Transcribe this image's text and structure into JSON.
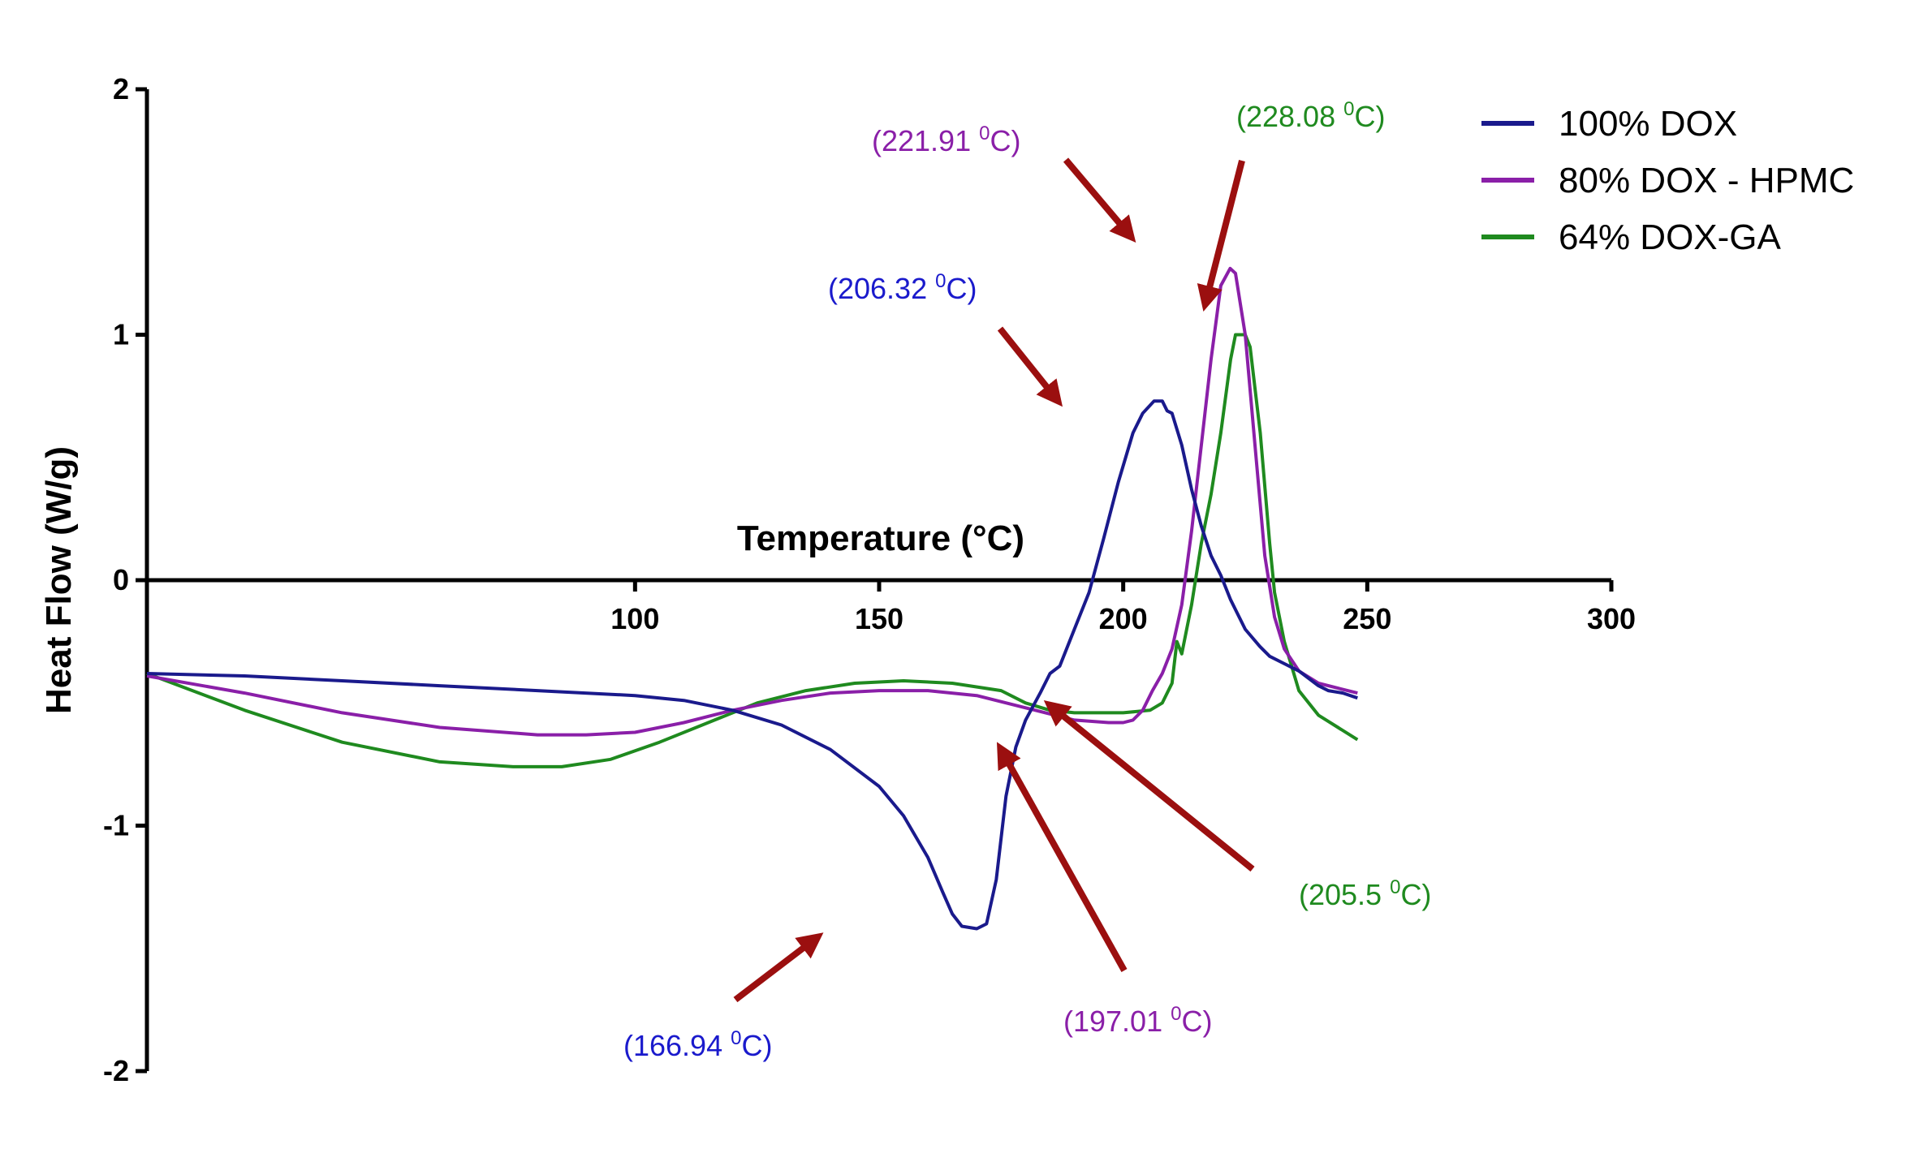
{
  "chart_data": {
    "type": "line",
    "xlabel": "Temperature (°C)",
    "ylabel": "Heat Flow (W/g)",
    "xlim": [
      0,
      300
    ],
    "ylim": [
      -2,
      2
    ],
    "x_ticks": [
      100,
      150,
      200,
      250,
      300
    ],
    "y_ticks": [
      2,
      1,
      0,
      -1,
      -2
    ],
    "grid": false,
    "legend_position": "top-right",
    "series": [
      {
        "name": "100% DOX",
        "color": "#1a1a8c",
        "points": [
          [
            0,
            -0.38
          ],
          [
            20,
            -0.39
          ],
          [
            40,
            -0.41
          ],
          [
            60,
            -0.43
          ],
          [
            80,
            -0.45
          ],
          [
            100,
            -0.47
          ],
          [
            110,
            -0.49
          ],
          [
            120,
            -0.53
          ],
          [
            130,
            -0.59
          ],
          [
            140,
            -0.69
          ],
          [
            150,
            -0.84
          ],
          [
            155,
            -0.96
          ],
          [
            160,
            -1.13
          ],
          [
            163,
            -1.27
          ],
          [
            165,
            -1.36
          ],
          [
            166.94,
            -1.41
          ],
          [
            170,
            -1.42
          ],
          [
            172,
            -1.4
          ],
          [
            174,
            -1.22
          ],
          [
            176,
            -0.88
          ],
          [
            178,
            -0.68
          ],
          [
            180,
            -0.57
          ],
          [
            183,
            -0.46
          ],
          [
            185,
            -0.38
          ],
          [
            187,
            -0.35
          ],
          [
            190,
            -0.2
          ],
          [
            193,
            -0.05
          ],
          [
            196,
            0.17
          ],
          [
            199,
            0.4
          ],
          [
            202,
            0.6
          ],
          [
            204,
            0.68
          ],
          [
            206.32,
            0.73
          ],
          [
            208,
            0.73
          ],
          [
            209,
            0.69
          ],
          [
            210,
            0.68
          ],
          [
            212,
            0.55
          ],
          [
            214,
            0.37
          ],
          [
            216,
            0.22
          ],
          [
            218,
            0.1
          ],
          [
            220,
            0.02
          ],
          [
            222,
            -0.08
          ],
          [
            225,
            -0.2
          ],
          [
            228,
            -0.27
          ],
          [
            230,
            -0.31
          ],
          [
            233,
            -0.34
          ],
          [
            236,
            -0.37
          ],
          [
            240,
            -0.43
          ],
          [
            242,
            -0.45
          ],
          [
            245,
            -0.46
          ],
          [
            248,
            -0.48
          ]
        ]
      },
      {
        "name": "80% DOX - HPMC",
        "color": "#8a1fa8",
        "points": [
          [
            0,
            -0.39
          ],
          [
            20,
            -0.46
          ],
          [
            40,
            -0.54
          ],
          [
            60,
            -0.6
          ],
          [
            80,
            -0.63
          ],
          [
            90,
            -0.63
          ],
          [
            100,
            -0.62
          ],
          [
            110,
            -0.58
          ],
          [
            120,
            -0.53
          ],
          [
            130,
            -0.49
          ],
          [
            140,
            -0.46
          ],
          [
            150,
            -0.45
          ],
          [
            160,
            -0.45
          ],
          [
            170,
            -0.47
          ],
          [
            180,
            -0.52
          ],
          [
            190,
            -0.57
          ],
          [
            197.01,
            -0.58
          ],
          [
            200,
            -0.58
          ],
          [
            202,
            -0.57
          ],
          [
            204,
            -0.53
          ],
          [
            206,
            -0.45
          ],
          [
            208,
            -0.38
          ],
          [
            210,
            -0.28
          ],
          [
            212,
            -0.1
          ],
          [
            214,
            0.2
          ],
          [
            216,
            0.55
          ],
          [
            218,
            0.9
          ],
          [
            220,
            1.2
          ],
          [
            221.91,
            1.27
          ],
          [
            223,
            1.25
          ],
          [
            225,
            1.0
          ],
          [
            227,
            0.55
          ],
          [
            229,
            0.1
          ],
          [
            231,
            -0.15
          ],
          [
            233,
            -0.28
          ],
          [
            236,
            -0.37
          ],
          [
            240,
            -0.42
          ],
          [
            244,
            -0.44
          ],
          [
            248,
            -0.46
          ]
        ]
      },
      {
        "name": "64% DOX-GA",
        "color": "#1f8a1f",
        "points": [
          [
            0,
            -0.38
          ],
          [
            20,
            -0.53
          ],
          [
            40,
            -0.66
          ],
          [
            60,
            -0.74
          ],
          [
            75,
            -0.76
          ],
          [
            85,
            -0.76
          ],
          [
            95,
            -0.73
          ],
          [
            105,
            -0.66
          ],
          [
            115,
            -0.58
          ],
          [
            125,
            -0.5
          ],
          [
            135,
            -0.45
          ],
          [
            145,
            -0.42
          ],
          [
            155,
            -0.41
          ],
          [
            165,
            -0.42
          ],
          [
            175,
            -0.45
          ],
          [
            180,
            -0.5
          ],
          [
            185,
            -0.53
          ],
          [
            190,
            -0.54
          ],
          [
            195,
            -0.54
          ],
          [
            200,
            -0.54
          ],
          [
            205.5,
            -0.53
          ],
          [
            208,
            -0.5
          ],
          [
            210,
            -0.42
          ],
          [
            211,
            -0.25
          ],
          [
            212,
            -0.3
          ],
          [
            214,
            -0.1
          ],
          [
            216,
            0.15
          ],
          [
            218,
            0.35
          ],
          [
            220,
            0.6
          ],
          [
            222,
            0.9
          ],
          [
            223,
            1.0
          ],
          [
            225,
            1.0
          ],
          [
            226,
            0.95
          ],
          [
            228.08,
            0.6
          ],
          [
            230,
            0.15
          ],
          [
            231,
            -0.05
          ],
          [
            233,
            -0.25
          ],
          [
            236,
            -0.45
          ],
          [
            240,
            -0.55
          ],
          [
            244,
            -0.6
          ],
          [
            248,
            -0.65
          ]
        ]
      }
    ],
    "annotations": [
      {
        "text": "(166.94 ",
        "sup": "0",
        "unit": "C)",
        "color": "#1a1acc"
      },
      {
        "text": "(206.32 ",
        "sup": "0",
        "unit": "C)",
        "color": "#1a1acc"
      },
      {
        "text": "(221.91 ",
        "sup": "0",
        "unit": "C)",
        "color": "#8a1fa8"
      },
      {
        "text": "(228.08 ",
        "sup": "0",
        "unit": "C)",
        "color": "#1f8a1f"
      },
      {
        "text": "(197.01 ",
        "sup": "0",
        "unit": "C)",
        "color": "#8a1fa8"
      },
      {
        "text": "(205.5 ",
        "sup": "0",
        "unit": "C)",
        "color": "#1f8a1f"
      }
    ],
    "arrow_color": "#9b0f0f"
  }
}
